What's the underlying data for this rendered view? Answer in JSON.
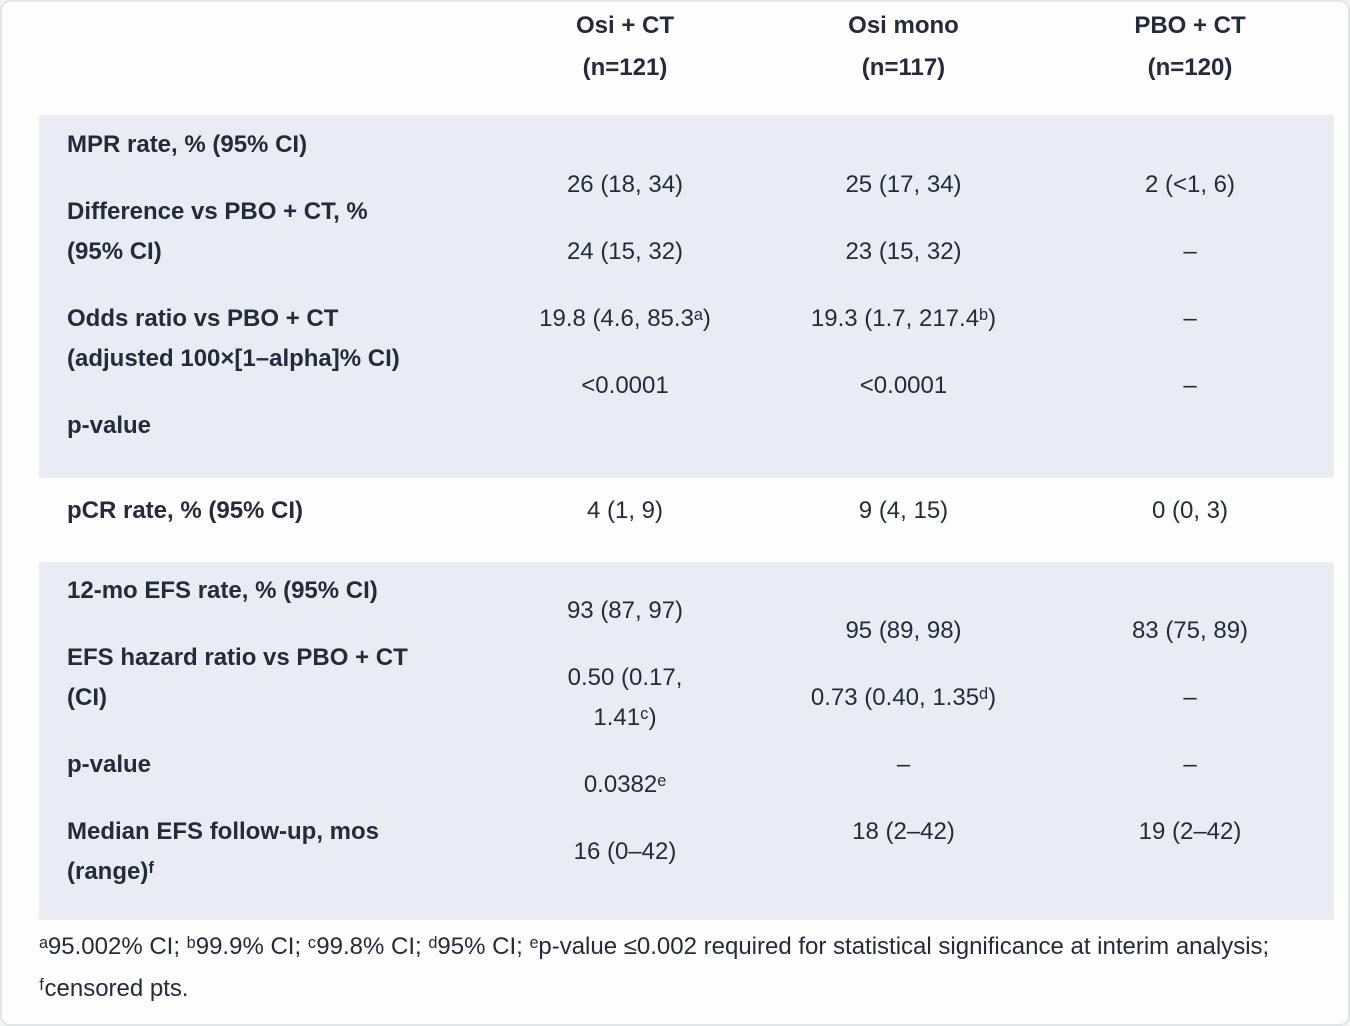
{
  "colors": {
    "band_background": "#e9edf3",
    "text": "#252a3d",
    "page_background": "#fdfdfe"
  },
  "columns": {
    "arm1": {
      "name": "Osi + CT",
      "n": "(n=121)"
    },
    "arm2": {
      "name": "Osi mono",
      "n": "(n=117)"
    },
    "arm3": {
      "name": "PBO + CT",
      "n": "(n=120)"
    }
  },
  "band1": {
    "labels": [
      {
        "l1": "MPR rate, % (95% CI)"
      },
      {
        "l1": "Difference vs PBO + CT, %",
        "l2": "(95% CI)"
      },
      {
        "l1": "Odds ratio vs PBO + CT",
        "l2": "(adjusted 100×[1–alpha]% CI)"
      },
      {
        "l1": "p-value"
      }
    ],
    "arm1": [
      {
        "l1": "26 (18, 34)"
      },
      {
        "l1": "24 (15, 32)"
      },
      {
        "l1": "19.8 (4.6, 85.3ᵃ)"
      },
      {
        "l1": "<0.0001"
      }
    ],
    "arm2": [
      {
        "l1": "25 (17, 34)"
      },
      {
        "l1": "23 (15, 32)"
      },
      {
        "l1": "19.3 (1.7, 217.4ᵇ)"
      },
      {
        "l1": "<0.0001"
      }
    ],
    "arm3": [
      {
        "l1": "2 (<1, 6)"
      },
      {
        "l1": "–"
      },
      {
        "l1": "–"
      },
      {
        "l1": "–"
      }
    ]
  },
  "pcr": {
    "label": "pCR rate, % (95% CI)",
    "arm1": "4 (1, 9)",
    "arm2": "9 (4, 15)",
    "arm3": "0 (0, 3)"
  },
  "band2": {
    "labels": [
      {
        "l1": "12-mo EFS rate, % (95% CI)"
      },
      {
        "l1": "EFS hazard ratio vs PBO + CT",
        "l2": "(CI)"
      },
      {
        "l1": "p-value"
      },
      {
        "l1": "Median EFS follow-up, mos",
        "l2": "(range)ᶠ"
      }
    ],
    "arm1": [
      {
        "l1": "93 (87, 97)"
      },
      {
        "l1": "0.50 (0.17,",
        "l2": "1.41ᶜ)"
      },
      {
        "l1": "0.0382ᵉ"
      },
      {
        "l1": "16 (0–42)"
      }
    ],
    "arm2": [
      {
        "l1": "95 (89, 98)"
      },
      {
        "l1": "0.73 (0.40, 1.35ᵈ)"
      },
      {
        "l1": "–"
      },
      {
        "l1": "18 (2–42)"
      }
    ],
    "arm3": [
      {
        "l1": "83 (75, 89)"
      },
      {
        "l1": "–"
      },
      {
        "l1": "–"
      },
      {
        "l1": "19 (2–42)"
      }
    ]
  },
  "footnotes": {
    "text": "ᵃ95.002% CI; ᵇ99.9% CI; ᶜ99.8% CI; ᵈ95% CI; ᵉp-value ≤0.002 required for statistical significance at interim analysis; ᶠcensored pts."
  }
}
